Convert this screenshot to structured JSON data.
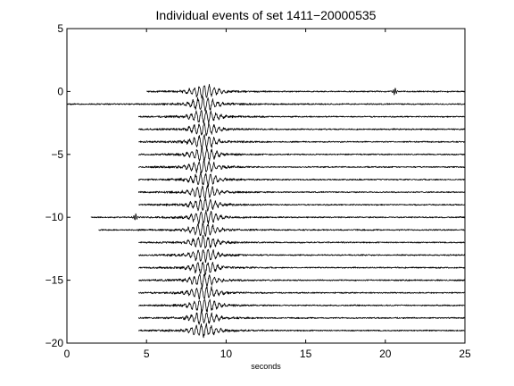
{
  "chart_data": {
    "type": "line",
    "title": "Individual events of set 1411−20000535",
    "xlabel": "seconds",
    "ylabel": "",
    "xlim": [
      0,
      25
    ],
    "ylim": [
      -20,
      5
    ],
    "x_ticks": [
      0,
      5,
      10,
      15,
      20,
      25
    ],
    "x_tick_labels": [
      "0",
      "5",
      "10",
      "15",
      "20",
      "25"
    ],
    "y_ticks": [
      5,
      0,
      -5,
      -10,
      -15,
      -20
    ],
    "y_tick_labels": [
      "5",
      "0",
      "−5",
      "−10",
      "−15",
      "−20"
    ],
    "grid": false,
    "trace_count": 20,
    "trace_offsets": [
      0,
      -1,
      -2,
      -3,
      -4,
      -5,
      -6,
      -7,
      -8,
      -9,
      -10,
      -11,
      -12,
      -13,
      -14,
      -15,
      -16,
      -17,
      -18,
      -19
    ],
    "trace_start_seconds": [
      5.0,
      0.0,
      4.5,
      4.5,
      4.5,
      4.5,
      4.5,
      4.5,
      4.5,
      4.5,
      1.5,
      2.0,
      4.5,
      4.5,
      4.5,
      4.5,
      4.5,
      4.5,
      4.5,
      4.5
    ],
    "burst_center_seconds": 8.6,
    "burst_amplitude": 0.55,
    "spikes": [
      {
        "trace": 0,
        "x": 4.6
      },
      {
        "trace": 0,
        "x": 20.6
      },
      {
        "trace": 10,
        "x": 4.3
      }
    ],
    "trace_color": "#000000"
  }
}
